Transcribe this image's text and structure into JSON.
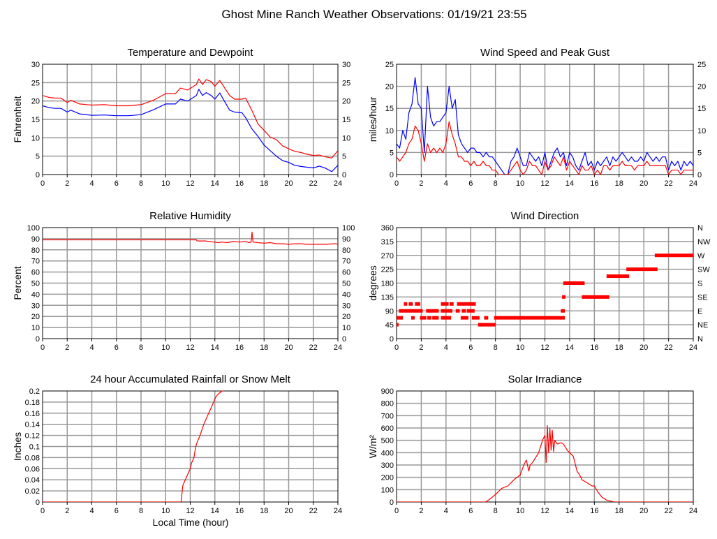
{
  "title": "Ghost Mine Ranch Weather Observations: 01/19/21 23:55",
  "xlabel": "Local Time (hour)",
  "chart_data": [
    {
      "type": "line",
      "title": "Temperature and Dewpoint",
      "ylabel": "Fahrenheit",
      "xlim": [
        0,
        24
      ],
      "ylim": [
        0,
        30
      ],
      "xticks": [
        0,
        2,
        4,
        6,
        8,
        10,
        12,
        14,
        16,
        18,
        20,
        22,
        24
      ],
      "yticks": [
        0,
        5,
        10,
        15,
        20,
        25,
        30
      ],
      "right_ticks": [
        "0",
        "5",
        "10",
        "15",
        "20",
        "25",
        "30"
      ],
      "grid": true,
      "series": [
        {
          "name": "Temperature",
          "color": "#ff0000",
          "x": [
            0,
            0.5,
            1,
            1.5,
            2,
            2.3,
            3,
            4,
            5,
            6,
            7,
            8,
            9,
            10,
            10.8,
            11.2,
            11.8,
            12.5,
            12.7,
            13,
            13.3,
            13.7,
            14,
            14.4,
            14.8,
            15.2,
            15.6,
            16.2,
            16.5,
            17,
            17.5,
            18,
            18.5,
            19,
            19.5,
            20,
            20.5,
            21,
            21.5,
            22,
            22.5,
            23,
            23.5,
            24
          ],
          "y": [
            21.5,
            21,
            20.8,
            20.8,
            19.6,
            20.2,
            19.2,
            18.9,
            19,
            18.7,
            18.7,
            19,
            20.2,
            22,
            22,
            23.5,
            23,
            24.5,
            26,
            24.5,
            25.8,
            25.3,
            24,
            25.6,
            23.5,
            21.5,
            20.5,
            20.5,
            20.8,
            17.5,
            13.8,
            12,
            10.2,
            9.5,
            7.8,
            7,
            6.3,
            6,
            5.5,
            5.2,
            5.3,
            4.8,
            4.5,
            6.5
          ]
        },
        {
          "name": "Dewpoint",
          "color": "#0000ff",
          "x": [
            0,
            0.5,
            1,
            1.5,
            2,
            2.3,
            3,
            4,
            5,
            6,
            7,
            8,
            9,
            10,
            10.8,
            11.2,
            11.8,
            12.5,
            12.7,
            13,
            13.3,
            13.7,
            14,
            14.4,
            14.8,
            15.2,
            15.6,
            16.2,
            16.5,
            17,
            17.5,
            18,
            18.5,
            19,
            19.5,
            20,
            20.5,
            21,
            21.5,
            22,
            22.5,
            23,
            23.5,
            24
          ],
          "y": [
            18.7,
            18.2,
            18,
            18,
            17,
            17.5,
            16.5,
            16.1,
            16.2,
            16,
            16,
            16.3,
            17.6,
            19.2,
            19.2,
            20.5,
            20,
            21.5,
            23.2,
            21.5,
            22.3,
            21.5,
            20.5,
            22.2,
            19.8,
            17.5,
            17,
            16.8,
            15.5,
            12.5,
            10.4,
            8,
            6.5,
            5,
            3.8,
            3.3,
            2.5,
            2.2,
            2,
            1.8,
            2.3,
            1.7,
            0.8,
            2.5
          ]
        }
      ]
    },
    {
      "type": "line",
      "title": "Wind Speed and Peak Gust",
      "ylabel": "miles/hour",
      "xlim": [
        0,
        24
      ],
      "ylim": [
        0,
        25
      ],
      "xticks": [
        0,
        2,
        4,
        6,
        8,
        10,
        12,
        14,
        16,
        18,
        20,
        22,
        24
      ],
      "yticks": [
        0,
        5,
        10,
        15,
        20,
        25
      ],
      "right_ticks": [
        "0",
        "5",
        "10",
        "15",
        "20",
        "25"
      ],
      "grid": true,
      "x_start": 0,
      "x_step": 0.25,
      "series": [
        {
          "name": "Peak Gust",
          "color": "#0000ff",
          "y": [
            7,
            6,
            10,
            8,
            14,
            16,
            22,
            16,
            15,
            5,
            20,
            13,
            11,
            12,
            12,
            13,
            14,
            20,
            15,
            17,
            9,
            7,
            6,
            5,
            6,
            6,
            5,
            5,
            4,
            5,
            4,
            4,
            3,
            2,
            1,
            0,
            0,
            3,
            4,
            6,
            4,
            2,
            2,
            5,
            4,
            3,
            4,
            2,
            5,
            1,
            3,
            5,
            6,
            4,
            5,
            2,
            5,
            4,
            2,
            1,
            3,
            5,
            2,
            3,
            1,
            3,
            2,
            3,
            4,
            2,
            4,
            3,
            4,
            5,
            4,
            3,
            4,
            3,
            3,
            4,
            3,
            5,
            4,
            3,
            4,
            3,
            4,
            4,
            1,
            3,
            2,
            3,
            1,
            3,
            2,
            3,
            2
          ]
        },
        {
          "name": "Wind Speed",
          "color": "#ff0000",
          "y": [
            4,
            3,
            4,
            5,
            7,
            8,
            11,
            10,
            7,
            3,
            7,
            5,
            6,
            5,
            6,
            5,
            7,
            12,
            9,
            7,
            4,
            4,
            3,
            3,
            2,
            3,
            2,
            2,
            3,
            2,
            2,
            1,
            1,
            0,
            0,
            0,
            0,
            1,
            2,
            3,
            1,
            0,
            1,
            3,
            2,
            2,
            1,
            0,
            3,
            1,
            2,
            4,
            3,
            2,
            4,
            1,
            3,
            2,
            1,
            0,
            2,
            1,
            1,
            2,
            0,
            1,
            0,
            2,
            2,
            1,
            2,
            2,
            2,
            3,
            2,
            2,
            2,
            1,
            2,
            2,
            2,
            3,
            2,
            2,
            2,
            2,
            2,
            2,
            0,
            1,
            1,
            1,
            0,
            1,
            1,
            1,
            1
          ]
        }
      ]
    },
    {
      "type": "line",
      "title": "Relative Humidity",
      "ylabel": "Percent",
      "xlim": [
        0,
        24
      ],
      "ylim": [
        0,
        100
      ],
      "xticks": [
        0,
        2,
        4,
        6,
        8,
        10,
        12,
        14,
        16,
        18,
        20,
        22,
        24
      ],
      "yticks": [
        0,
        10,
        20,
        30,
        40,
        50,
        60,
        70,
        80,
        90,
        100
      ],
      "right_ticks": [
        "0",
        "10",
        "20",
        "30",
        "40",
        "50",
        "60",
        "70",
        "80",
        "90",
        "100"
      ],
      "grid": true,
      "series": [
        {
          "name": "Relative Humidity",
          "color": "#ff0000",
          "x": [
            0,
            12.5,
            12.55,
            13.2,
            13.9,
            14.3,
            14.6,
            15,
            15.5,
            16,
            16.5,
            16.8,
            16.95,
            17.02,
            17.1,
            17.5,
            18,
            18.5,
            19,
            19.5,
            20,
            20.5,
            21,
            21.5,
            22,
            22.5,
            23,
            23.8,
            24
          ],
          "y": [
            89,
            89,
            88,
            88,
            87,
            86.5,
            87,
            86.5,
            87.5,
            87,
            87.5,
            86.5,
            87,
            96,
            87,
            86.5,
            86,
            86.5,
            85.5,
            85.5,
            85,
            85.5,
            85.5,
            85,
            85,
            85,
            85,
            85.5,
            85
          ]
        }
      ]
    },
    {
      "type": "scatter",
      "title": "Wind Direction",
      "ylabel": "degrees",
      "xlim": [
        0,
        24
      ],
      "ylim": [
        0,
        360
      ],
      "xticks": [
        0,
        2,
        4,
        6,
        8,
        10,
        12,
        14,
        16,
        18,
        20,
        22,
        24
      ],
      "yticks": [
        0,
        45,
        90,
        135,
        180,
        225,
        270,
        315,
        360
      ],
      "right_ticks": [
        "N",
        "NE",
        "E",
        "SE",
        "S",
        "SW",
        "W",
        "NW",
        "N"
      ],
      "grid": true,
      "color": "#ff0000",
      "segments": [
        [
          0,
          0.05,
          45
        ],
        [
          0.05,
          0.4,
          67.5
        ],
        [
          1.3,
          1.35,
          67.5
        ],
        [
          2,
          2.3,
          67.5
        ],
        [
          2.6,
          2.7,
          67.5
        ],
        [
          3,
          3.3,
          67.5
        ],
        [
          3.7,
          3.8,
          67.5
        ],
        [
          4,
          4.3,
          67.5
        ],
        [
          5.3,
          5.7,
          67.5
        ],
        [
          6.2,
          6.6,
          67.5
        ],
        [
          7.2,
          7.3,
          67.5
        ],
        [
          8,
          13.5,
          67.5
        ],
        [
          0.3,
          2,
          90
        ],
        [
          2.5,
          3.3,
          90
        ],
        [
          3.7,
          4.4,
          90
        ],
        [
          4.9,
          5,
          90
        ],
        [
          5.4,
          5.5,
          90
        ],
        [
          5.8,
          6.2,
          90
        ],
        [
          13.4,
          13.5,
          90
        ],
        [
          0.7,
          0.75,
          112.5
        ],
        [
          1.1,
          1.2,
          112.5
        ],
        [
          1.6,
          1.8,
          112.5
        ],
        [
          3.7,
          4.1,
          112.5
        ],
        [
          4.4,
          4.5,
          112.5
        ],
        [
          5,
          5.1,
          112.5
        ],
        [
          5.3,
          6.3,
          112.5
        ],
        [
          6.7,
          6.8,
          45
        ],
        [
          6.9,
          7.9,
          45
        ],
        [
          13.5,
          13.55,
          135
        ],
        [
          15.1,
          17.1,
          135
        ],
        [
          13.6,
          15.1,
          180
        ],
        [
          17.1,
          18.7,
          202.5
        ],
        [
          18.7,
          21,
          225
        ],
        [
          21,
          24,
          270
        ]
      ]
    },
    {
      "type": "line",
      "title": "24 hour Accumulated Rainfall or Snow Melt",
      "ylabel": "Inches",
      "xlim": [
        0,
        24
      ],
      "ylim": [
        0,
        0.2
      ],
      "xticks": [
        0,
        2,
        4,
        6,
        8,
        10,
        12,
        14,
        16,
        18,
        20,
        22,
        24
      ],
      "yticks": [
        0,
        0.02,
        0.04,
        0.06,
        0.08,
        0.1,
        0.12,
        0.14,
        0.16,
        0.18,
        0.2
      ],
      "grid": true,
      "series": [
        {
          "name": "Rainfall",
          "color": "#ff0000",
          "x": [
            0,
            11.25,
            11.4,
            11.6,
            11.8,
            12.0,
            12.1,
            12.3,
            12.45,
            12.6,
            12.8,
            12.95,
            13.1,
            13.3,
            13.5,
            13.7,
            13.9,
            14.1,
            14.3,
            14.6,
            14.7
          ],
          "y": [
            0,
            0,
            0.03,
            0.04,
            0.05,
            0.06,
            0.07,
            0.08,
            0.1,
            0.11,
            0.12,
            0.13,
            0.14,
            0.15,
            0.16,
            0.17,
            0.18,
            0.19,
            0.195,
            0.2,
            0.2
          ]
        }
      ]
    },
    {
      "type": "line",
      "title": "Solar Irradiance",
      "ylabel": "W/m²",
      "xlim": [
        0,
        24
      ],
      "ylim": [
        0,
        900
      ],
      "xticks": [
        0,
        2,
        4,
        6,
        8,
        10,
        12,
        14,
        16,
        18,
        20,
        22,
        24
      ],
      "yticks": [
        0,
        100,
        200,
        300,
        400,
        500,
        600,
        700,
        800,
        900
      ],
      "grid": true,
      "series": [
        {
          "name": "Solar Irradiance",
          "color": "#ff0000",
          "x": [
            0,
            7.2,
            7.5,
            8,
            8.5,
            9,
            9.5,
            10,
            10.3,
            10.5,
            10.7,
            10.8,
            11,
            11.5,
            11.8,
            12,
            12.1,
            12.2,
            12.3,
            12.4,
            12.5,
            12.6,
            12.7,
            12.8,
            13,
            13.3,
            13.5,
            13.8,
            14,
            14.3,
            14.6,
            14.8,
            15,
            15.5,
            15.8,
            16,
            16.3,
            16.6,
            17,
            17.4,
            17.6,
            24
          ],
          "y": [
            0,
            0,
            20,
            60,
            110,
            130,
            180,
            220,
            300,
            340,
            250,
            300,
            320,
            400,
            500,
            540,
            320,
            620,
            400,
            600,
            420,
            580,
            410,
            500,
            470,
            480,
            470,
            420,
            400,
            370,
            250,
            220,
            180,
            150,
            130,
            130,
            80,
            40,
            15,
            5,
            0,
            0
          ]
        }
      ]
    }
  ]
}
